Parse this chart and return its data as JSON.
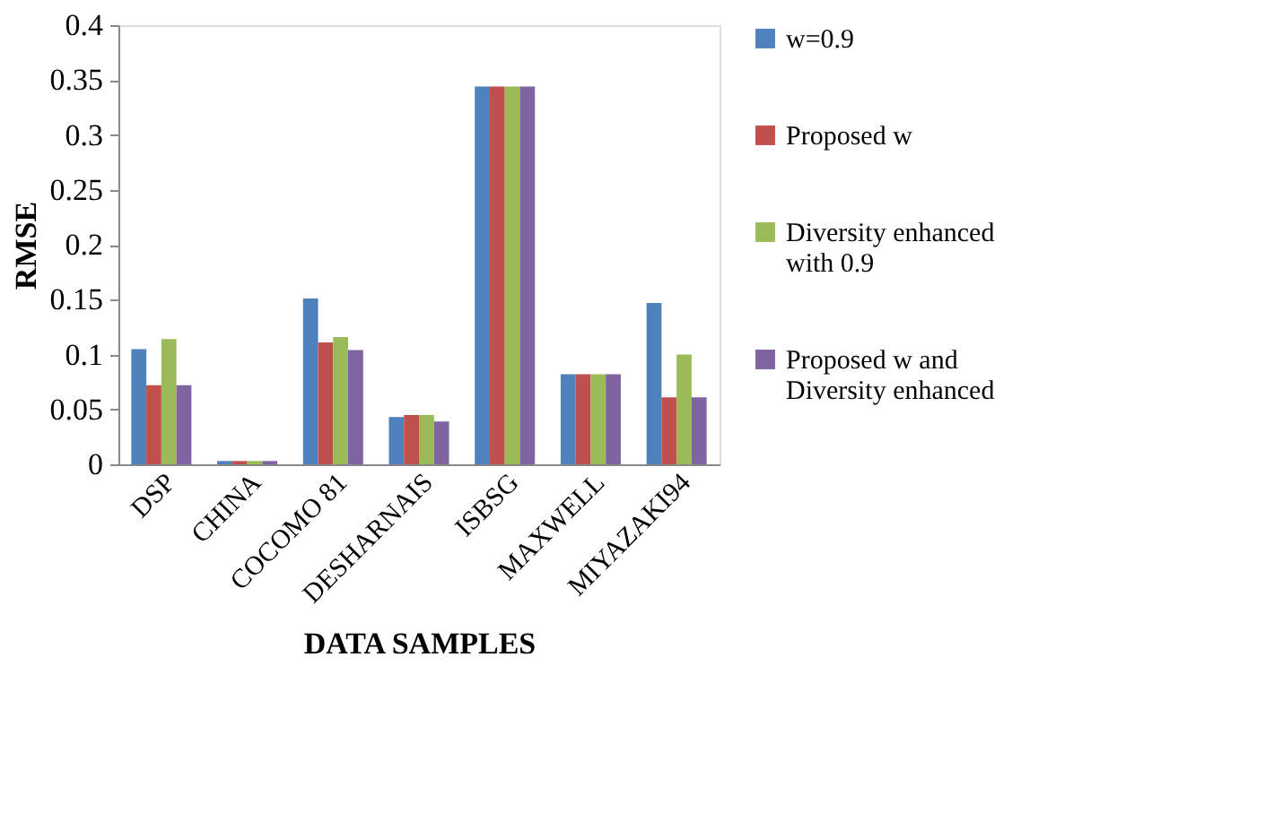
{
  "chart_data": {
    "type": "bar",
    "xlabel": "DATA SAMPLES",
    "ylabel": "RMSE",
    "categories": [
      "DSP",
      "CHINA",
      "COCOMO 81",
      "DESHARNAIS",
      "ISBSG",
      "MAXWELL",
      "MIYAZAKI94"
    ],
    "series": [
      {
        "name": "w=0.9",
        "color": "#4f81bd",
        "values": [
          0.105,
          0.003,
          0.151,
          0.043,
          0.344,
          0.082,
          0.147
        ]
      },
      {
        "name": "Proposed w",
        "color": "#c0504d",
        "values": [
          0.072,
          0.003,
          0.111,
          0.045,
          0.344,
          0.082,
          0.061
        ]
      },
      {
        "name": "Diversity enhanced with 0.9",
        "color": "#9bbb59",
        "values": [
          0.114,
          0.003,
          0.116,
          0.045,
          0.344,
          0.082,
          0.1
        ]
      },
      {
        "name": "Proposed w and Diversity enhanced",
        "color": "#8064a2",
        "values": [
          0.072,
          0.003,
          0.104,
          0.039,
          0.344,
          0.082,
          0.061
        ]
      }
    ],
    "ylim": [
      0,
      0.4
    ],
    "yticks": [
      0,
      0.05,
      0.1,
      0.15,
      0.2,
      0.25,
      0.3,
      0.35,
      0.4
    ],
    "grid": false,
    "legend": "right"
  }
}
